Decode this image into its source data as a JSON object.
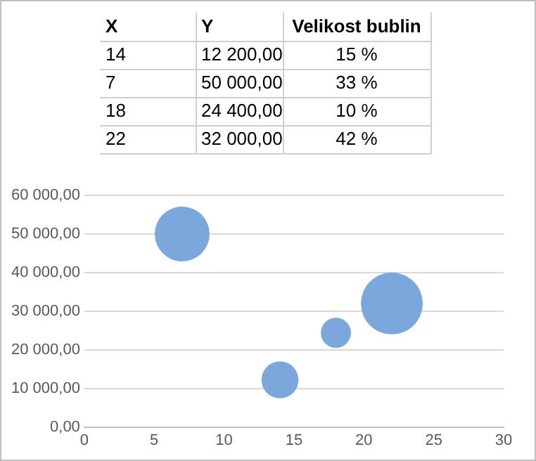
{
  "chart_data": [
    {
      "type": "other",
      "annotations": [
        "X",
        "Y",
        "Velikost bublin",
        "14",
        "12 200,00",
        "15 %",
        "7",
        "50 000,00",
        "33 %",
        "18",
        "24 400,00",
        "10 %",
        "22",
        "32 000,00",
        "42 %"
      ]
    },
    {
      "type": "bubble",
      "x": [
        14,
        7,
        18,
        22
      ],
      "series": [
        {
          "color": "#7ba7dc",
          "values": [
            12200,
            50000,
            24400,
            32000
          ],
          "sizes": [
            0.357,
            0.786,
            0.238,
            1
          ]
        }
      ],
      "xlim": [
        0,
        30
      ],
      "xticks": [
        0,
        5,
        10,
        15,
        20,
        25,
        30
      ],
      "ylim": [
        0,
        60000
      ],
      "yticks": [
        {
          "value": 0,
          "label": "0,00"
        },
        {
          "value": 10000,
          "label": "10 000,00"
        },
        {
          "value": 20000,
          "label": "20 000,00"
        },
        {
          "value": 30000,
          "label": "30 000,00"
        },
        {
          "value": 40000,
          "label": "40 000,00"
        },
        {
          "value": 50000,
          "label": "50 000,00"
        },
        {
          "value": 60000,
          "label": "60 000,00"
        }
      ],
      "grid": "y",
      "legend": false
    }
  ]
}
